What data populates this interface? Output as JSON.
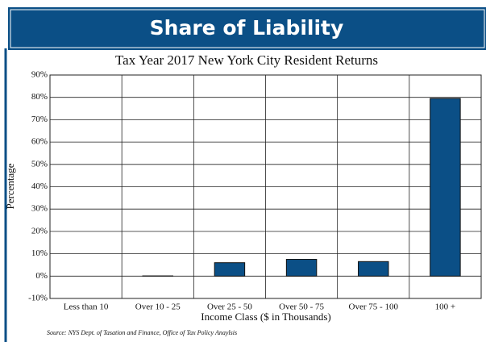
{
  "chart_data": {
    "type": "bar",
    "header": "Share of Liability",
    "title": "Tax Year 2017 New York City Resident Returns",
    "x_label": "Income Class ($ in Thousands)",
    "y_label": "Percentage",
    "source": "Source: NYS Dept. of Tasation and Finance, Office of Tax Policy Anaylsis",
    "categories": [
      "Less than 10",
      "Over 10 - 25",
      "Over 25 - 50",
      "Over 50 - 75",
      "Over 75 - 100",
      "100 +"
    ],
    "values": [
      0,
      0.1,
      6.0,
      7.5,
      6.5,
      79.5
    ],
    "color": "#0b4f86",
    "ylim": [
      -10,
      90
    ],
    "yticks": [
      {
        "value": -10,
        "label": "-10%"
      },
      {
        "value": 0,
        "label": "0%"
      },
      {
        "value": 10,
        "label": "10%"
      },
      {
        "value": 20,
        "label": "20%"
      },
      {
        "value": 30,
        "label": "30%"
      },
      {
        "value": 40,
        "label": "40%"
      },
      {
        "value": 50,
        "label": "50%"
      },
      {
        "value": 60,
        "label": "60%"
      },
      {
        "value": 70,
        "label": "70%"
      },
      {
        "value": 80,
        "label": "80%"
      },
      {
        "value": 90,
        "label": "90%"
      }
    ],
    "grid": true
  }
}
